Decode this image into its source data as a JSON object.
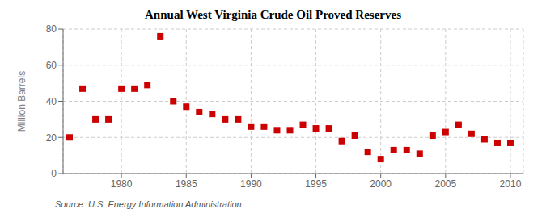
{
  "chart_data": {
    "type": "scatter",
    "title": "Annual West Virginia Crude Oil Proved Reserves",
    "ylabel": "Million Barrels",
    "annotation": "Source: U.S. Energy Information Administration",
    "x": [
      1976,
      1977,
      1978,
      1979,
      1980,
      1981,
      1982,
      1983,
      1984,
      1985,
      1986,
      1987,
      1988,
      1989,
      1990,
      1991,
      1992,
      1993,
      1994,
      1995,
      1996,
      1997,
      1998,
      1999,
      2000,
      2001,
      2002,
      2003,
      2004,
      2005,
      2006,
      2007,
      2008,
      2009,
      2010
    ],
    "values": [
      20,
      47,
      30,
      30,
      47,
      47,
      49,
      76,
      40,
      37,
      34,
      33,
      30,
      30,
      26,
      26,
      24,
      24,
      27,
      25,
      25,
      18,
      21,
      12,
      8,
      13,
      13,
      11,
      21,
      23,
      27,
      22,
      19,
      17,
      17
    ],
    "color": "#cc0000",
    "marker": "square",
    "xlim": [
      1975.5,
      2011
    ],
    "ylim": [
      0,
      80
    ],
    "xticks": [
      1980,
      1985,
      1990,
      1995,
      2000,
      2005,
      2010
    ],
    "yticks": [
      0,
      20,
      40,
      60,
      80
    ],
    "grid": true
  }
}
